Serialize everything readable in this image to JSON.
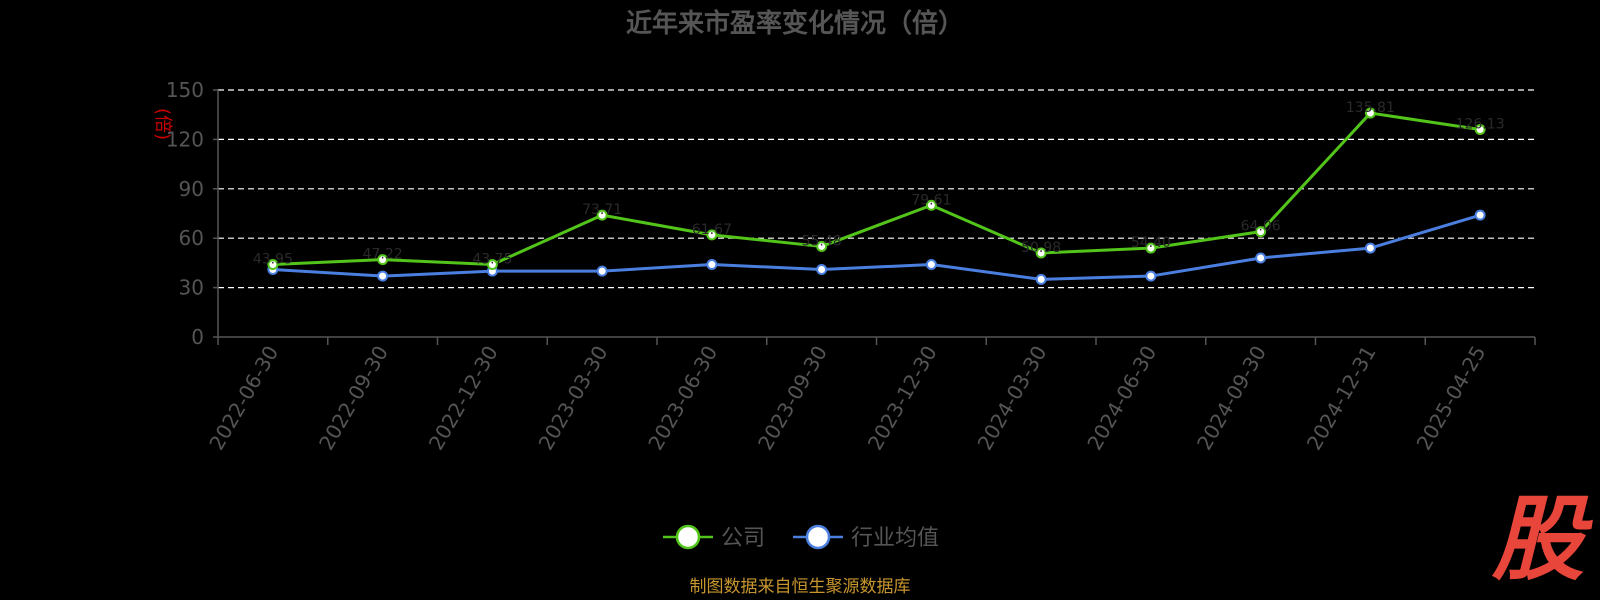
{
  "chart_data": {
    "type": "line",
    "title": "近年来市盈率变化情况（倍）",
    "unit_label": "(倍)",
    "categories": [
      "2022-06-30",
      "2022-09-30",
      "2022-12-30",
      "2023-03-30",
      "2023-06-30",
      "2023-09-30",
      "2023-12-30",
      "2024-03-30",
      "2024-06-30",
      "2024-09-30",
      "2024-12-31",
      "2025-04-25"
    ],
    "ylim": [
      0,
      150
    ],
    "yticks": [
      "0",
      "30",
      "60",
      "90",
      "120",
      "150"
    ],
    "grid": true,
    "legend_position": "bottom",
    "series": [
      {
        "name": "公司",
        "color": "#52c41a",
        "values": [
          44,
          47,
          44,
          74,
          62,
          55,
          80,
          51,
          54,
          64,
          136,
          126
        ],
        "labels": [
          "43.95",
          "47.22",
          "43.75",
          "73.71",
          "61.67",
          "55.48",
          "79.61",
          "50.98",
          "54.40",
          "64.06",
          "135.81",
          "126.13"
        ]
      },
      {
        "name": "行业均值",
        "color": "#4a7fe0",
        "values": [
          41,
          37,
          40,
          40,
          44,
          41,
          44,
          35,
          37,
          48,
          54,
          74
        ],
        "labels": []
      }
    ]
  },
  "source": "制图数据来自恒生聚源数据库",
  "logo": "股"
}
